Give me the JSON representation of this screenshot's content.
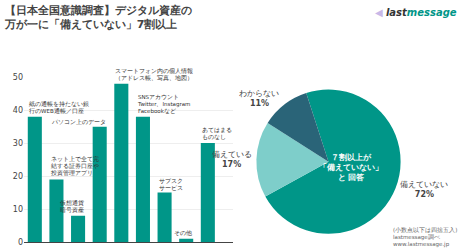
{
  "chart_data": [
    {
      "type": "bar",
      "title": "【日本全国意識調査】デジタル資産の\n万が一に「備えていない」7割以上",
      "categories": [
        "紙の通帳を持たない銀\n行のWEB通帳／口座",
        "ネット上で全て完\n結する証券口座や\n投資管理アプリ",
        "仮想通貨\n暗号資産",
        "パソコン上のデータ",
        "スマートフォン内の個人情報\n（アドレス帳、写真、地図）",
        "SNSアカウント\nTwitter、Instagram\nFacebookなど",
        "サブスク\nサービス",
        "その他",
        "あてはまる\nものなし"
      ],
      "values": [
        38,
        19,
        8,
        35,
        48,
        38,
        15,
        1,
        30
      ],
      "color": "#009688",
      "ylim": [
        0,
        50
      ],
      "yticks": [
        0,
        10,
        20,
        30,
        40,
        50
      ],
      "grid": true,
      "tick_labels": "y"
    },
    {
      "type": "pie",
      "categories": [
        "備えていない",
        "備えている",
        "わからない"
      ],
      "values": [
        72,
        17,
        11
      ],
      "value_labels": [
        "72%",
        "17%",
        "11%"
      ],
      "data_labels": true,
      "colors": [
        "#009688",
        "#7ececa",
        "#2a6478"
      ],
      "annotations": [
        {
          "text": "７割以上が\n「備えていない」\nと 回答",
          "color": "#ffffff"
        },
        {
          "text": "◀",
          "color": "#c8b8e8"
        },
        {
          "text": "last",
          "color": "#333333"
        },
        {
          "text": "message",
          "color": "#009688"
        },
        {
          "text": "(小数点以下は四捨五入)\nlastmessage調べ\nwww.lastmessage.jp"
        }
      ]
    }
  ]
}
